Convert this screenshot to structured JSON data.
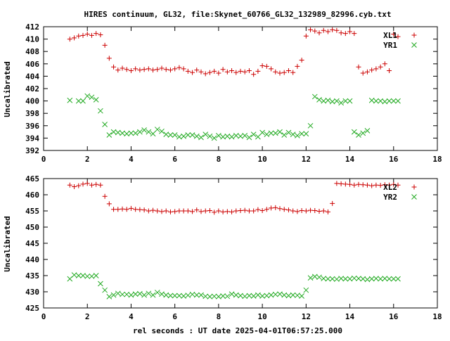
{
  "chart_data": {
    "title": "HIRES continuum, GL32, file:Skynet_60766_GL32_132989_82996.cyb.txt",
    "xlabel": "rel seconds : UT date 2025-04-01T06:57:25.000",
    "panels": [
      {
        "type": "scatter",
        "ylabel": "Uncalibrated",
        "xlim": [
          0,
          18
        ],
        "ylim": [
          392,
          412
        ],
        "xticks": [
          0,
          2,
          4,
          6,
          8,
          10,
          12,
          14,
          16,
          18
        ],
        "yticks": [
          392,
          394,
          396,
          398,
          400,
          402,
          404,
          406,
          408,
          410,
          412
        ],
        "legend_position": "top-right",
        "series": [
          {
            "name": "XL1",
            "marker": "plus",
            "color": "#cc0000",
            "x": [
              1.2,
              1.4,
              1.6,
              1.8,
              2.0,
              2.2,
              2.4,
              2.6,
              2.8,
              3.0,
              3.2,
              3.4,
              3.6,
              3.8,
              4.0,
              4.2,
              4.4,
              4.6,
              4.8,
              5.0,
              5.2,
              5.4,
              5.6,
              5.8,
              6.0,
              6.2,
              6.4,
              6.6,
              6.8,
              7.0,
              7.2,
              7.4,
              7.6,
              7.8,
              8.0,
              8.2,
              8.4,
              8.6,
              8.8,
              9.0,
              9.2,
              9.4,
              9.6,
              9.8,
              10.0,
              10.2,
              10.4,
              10.6,
              10.8,
              11.0,
              11.2,
              11.4,
              11.6,
              11.8,
              12.0,
              12.2,
              12.4,
              12.6,
              12.8,
              13.0,
              13.2,
              13.4,
              13.6,
              13.8,
              14.0,
              14.2,
              14.4,
              14.6,
              14.8,
              15.0,
              15.2,
              15.4,
              15.6,
              15.8,
              16.0,
              16.2
            ],
            "y": [
              410.0,
              410.2,
              410.5,
              410.6,
              410.8,
              410.6,
              410.9,
              410.7,
              409.0,
              406.9,
              405.5,
              405.0,
              405.3,
              405.1,
              404.9,
              405.2,
              405.0,
              405.1,
              405.2,
              405.0,
              405.1,
              405.3,
              405.1,
              405.0,
              405.2,
              405.4,
              405.2,
              404.8,
              404.6,
              405.0,
              404.7,
              404.4,
              404.6,
              404.8,
              404.5,
              405.1,
              404.7,
              404.9,
              404.6,
              404.8,
              404.7,
              404.9,
              404.3,
              404.8,
              405.7,
              405.6,
              405.2,
              404.7,
              404.5,
              404.6,
              404.9,
              404.6,
              405.6,
              406.6,
              410.5,
              411.5,
              411.3,
              411.0,
              411.4,
              411.2,
              411.5,
              411.4,
              411.0,
              410.9,
              411.2,
              410.9,
              405.5,
              404.5,
              404.7,
              405.0,
              405.2,
              405.5,
              406.0,
              404.9,
              410.8,
              410.4
            ]
          },
          {
            "name": "YR1",
            "marker": "cross",
            "color": "#22aa22",
            "x": [
              1.2,
              1.6,
              1.8,
              2.0,
              2.2,
              2.4,
              2.6,
              2.8,
              3.0,
              3.2,
              3.4,
              3.6,
              3.8,
              4.0,
              4.2,
              4.4,
              4.6,
              4.8,
              5.0,
              5.2,
              5.4,
              5.6,
              5.8,
              6.0,
              6.2,
              6.4,
              6.6,
              6.8,
              7.0,
              7.2,
              7.4,
              7.6,
              7.8,
              8.0,
              8.2,
              8.4,
              8.6,
              8.8,
              9.0,
              9.2,
              9.4,
              9.6,
              9.8,
              10.0,
              10.2,
              10.4,
              10.6,
              10.8,
              11.0,
              11.2,
              11.4,
              11.6,
              11.8,
              12.0,
              12.2,
              12.4,
              12.6,
              12.8,
              13.0,
              13.2,
              13.4,
              13.6,
              13.8,
              14.0,
              14.2,
              14.4,
              14.6,
              14.8,
              15.0,
              15.2,
              15.4,
              15.6,
              15.8,
              16.0,
              16.2
            ],
            "y": [
              400.1,
              400.0,
              400.0,
              400.8,
              400.6,
              400.2,
              398.4,
              396.2,
              394.5,
              395.0,
              394.9,
              394.8,
              394.7,
              394.8,
              394.8,
              395.0,
              395.3,
              395.0,
              394.7,
              395.4,
              395.1,
              394.6,
              394.5,
              394.5,
              394.2,
              394.3,
              394.5,
              394.5,
              394.3,
              394.1,
              394.6,
              394.3,
              394.0,
              394.4,
              394.2,
              394.3,
              394.2,
              394.4,
              394.3,
              394.4,
              394.1,
              394.6,
              394.2,
              394.9,
              394.6,
              394.8,
              394.8,
              395.0,
              394.5,
              394.9,
              394.6,
              394.4,
              394.7,
              394.7,
              396.0,
              400.7,
              400.2,
              400.0,
              400.1,
              399.9,
              400.0,
              399.7,
              400.0,
              400.0,
              395.0,
              394.5,
              394.8,
              395.2,
              400.1,
              400.0,
              400.0,
              399.9,
              400.0,
              400.0,
              400.0
            ]
          }
        ]
      },
      {
        "type": "scatter",
        "ylabel": "Uncalibrated",
        "xlim": [
          0,
          18
        ],
        "ylim": [
          425,
          465
        ],
        "xticks": [
          0,
          2,
          4,
          6,
          8,
          10,
          12,
          14,
          16,
          18
        ],
        "yticks": [
          425,
          430,
          435,
          440,
          445,
          450,
          455,
          460,
          465
        ],
        "legend_position": "top-right",
        "series": [
          {
            "name": "XL2",
            "marker": "plus",
            "color": "#cc0000",
            "x": [
              1.2,
              1.4,
              1.6,
              1.8,
              2.0,
              2.2,
              2.4,
              2.6,
              2.8,
              3.0,
              3.2,
              3.4,
              3.6,
              3.8,
              4.0,
              4.2,
              4.4,
              4.6,
              4.8,
              5.0,
              5.2,
              5.4,
              5.6,
              5.8,
              6.0,
              6.2,
              6.4,
              6.6,
              6.8,
              7.0,
              7.2,
              7.4,
              7.6,
              7.8,
              8.0,
              8.2,
              8.4,
              8.6,
              8.8,
              9.0,
              9.2,
              9.4,
              9.6,
              9.8,
              10.0,
              10.2,
              10.4,
              10.6,
              10.8,
              11.0,
              11.2,
              11.4,
              11.6,
              11.8,
              12.0,
              12.2,
              12.4,
              12.6,
              12.8,
              13.0,
              13.2,
              13.4,
              13.6,
              13.8,
              14.0,
              14.2,
              14.4,
              14.6,
              14.8,
              15.0,
              15.2,
              15.4,
              15.6,
              15.8,
              16.0,
              16.2
            ],
            "y": [
              463.0,
              462.5,
              462.8,
              463.3,
              463.5,
              463.0,
              463.2,
              463.0,
              459.5,
              457.2,
              455.5,
              455.5,
              455.6,
              455.5,
              455.8,
              455.5,
              455.4,
              455.3,
              455.0,
              455.2,
              455.0,
              454.8,
              455.0,
              454.7,
              454.8,
              455.0,
              455.0,
              455.0,
              454.8,
              455.3,
              454.8,
              455.0,
              455.1,
              454.6,
              455.0,
              454.7,
              454.8,
              454.7,
              455.0,
              455.1,
              455.2,
              455.0,
              455.0,
              455.4,
              455.1,
              455.5,
              455.9,
              456.0,
              455.7,
              455.5,
              455.3,
              455.0,
              454.8,
              455.1,
              455.0,
              455.2,
              455.1,
              454.9,
              455.0,
              454.7,
              457.3,
              463.5,
              463.4,
              463.3,
              463.2,
              463.0,
              463.2,
              463.1,
              463.0,
              462.8,
              463.0,
              462.9,
              463.1,
              463.0,
              463.2,
              463.0
            ]
          },
          {
            "name": "YR2",
            "marker": "cross",
            "color": "#22aa22",
            "x": [
              1.2,
              1.4,
              1.6,
              1.8,
              2.0,
              2.2,
              2.4,
              2.6,
              2.8,
              3.0,
              3.2,
              3.4,
              3.6,
              3.8,
              4.0,
              4.2,
              4.4,
              4.6,
              4.8,
              5.0,
              5.2,
              5.4,
              5.6,
              5.8,
              6.0,
              6.2,
              6.4,
              6.6,
              6.8,
              7.0,
              7.2,
              7.4,
              7.6,
              7.8,
              8.0,
              8.2,
              8.4,
              8.6,
              8.8,
              9.0,
              9.2,
              9.4,
              9.6,
              9.8,
              10.0,
              10.2,
              10.4,
              10.6,
              10.8,
              11.0,
              11.2,
              11.4,
              11.6,
              11.8,
              12.0,
              12.2,
              12.4,
              12.6,
              12.8,
              13.0,
              13.2,
              13.4,
              13.6,
              13.8,
              14.0,
              14.2,
              14.4,
              14.6,
              14.8,
              15.0,
              15.2,
              15.4,
              15.6,
              15.8,
              16.0,
              16.2
            ],
            "y": [
              434.0,
              435.2,
              435.0,
              435.0,
              434.8,
              434.8,
              435.0,
              432.5,
              430.5,
              428.5,
              429.0,
              429.5,
              429.2,
              429.2,
              429.0,
              429.3,
              429.4,
              429.0,
              429.5,
              429.0,
              429.8,
              429.3,
              429.0,
              428.8,
              428.8,
              428.8,
              428.7,
              428.9,
              429.2,
              429.0,
              429.0,
              428.6,
              428.5,
              428.6,
              428.5,
              428.7,
              428.6,
              429.3,
              429.0,
              428.8,
              428.6,
              428.8,
              428.7,
              429.0,
              428.7,
              428.8,
              429.0,
              429.2,
              429.3,
              429.0,
              428.8,
              429.0,
              428.9,
              428.7,
              430.5,
              434.3,
              434.7,
              434.5,
              434.1,
              434.0,
              434.0,
              433.9,
              434.1,
              434.0,
              434.0,
              434.2,
              434.1,
              434.0,
              433.8,
              434.0,
              434.1,
              434.0,
              434.1,
              434.0,
              434.0,
              434.0
            ]
          }
        ]
      }
    ]
  }
}
